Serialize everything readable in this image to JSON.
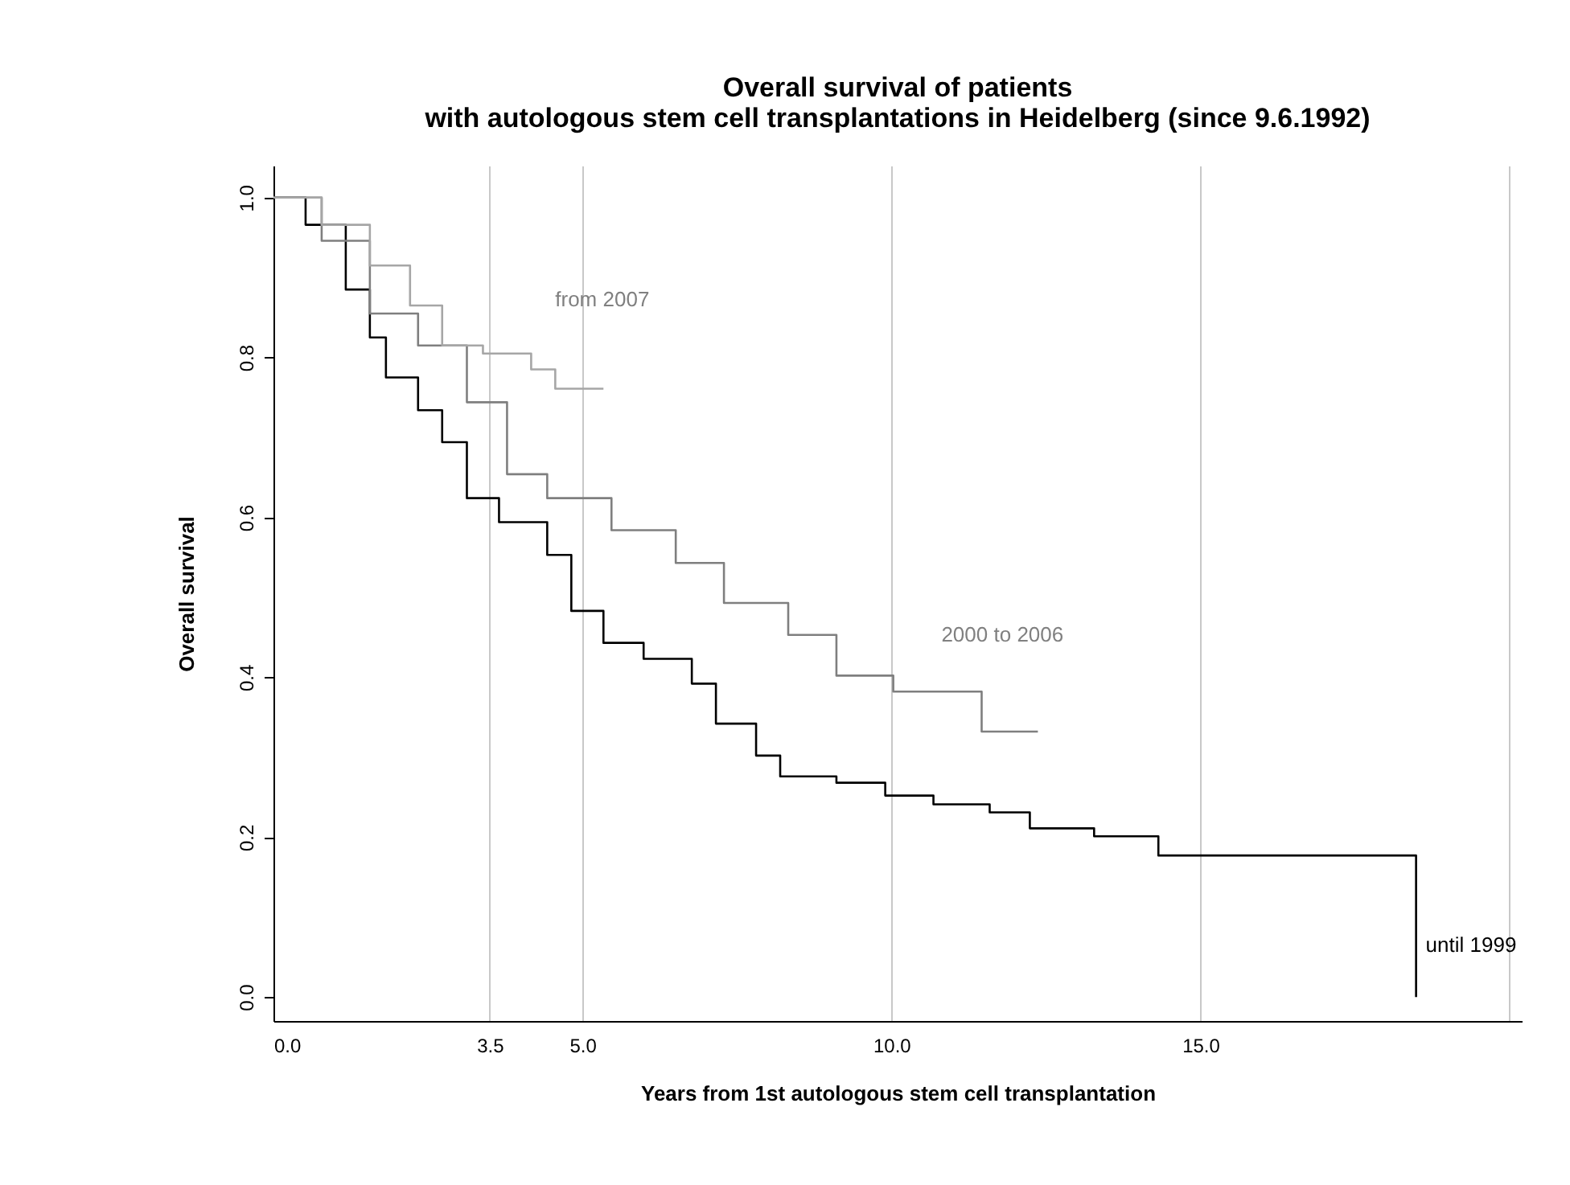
{
  "chart_data": {
    "type": "step",
    "title": "Overall survival of patients\nwith autologous stem cell transplantations in Heidelberg (since 9.6.1992)",
    "xlabel": "Years from 1st autologous stem cell transplantation",
    "ylabel": "Overall survival",
    "xlim": [
      0,
      20.2
    ],
    "xticks": [
      {
        "value": 0,
        "label": "0.0"
      },
      3.5,
      {
        "value": 5,
        "label": "5.0"
      },
      {
        "value": 10,
        "label": "10.0"
      },
      {
        "value": 15,
        "label": "15.0"
      },
      {
        "value": 20,
        "label": null
      }
    ],
    "ylim": [
      -0.03,
      1.04
    ],
    "yticks": [
      {
        "value": 0,
        "label": "0.0"
      },
      0.2,
      0.4,
      0.6,
      0.8,
      {
        "value": 1,
        "label": "1.0"
      }
    ],
    "grid": "x",
    "series": [
      {
        "name": "until 1999",
        "color": "#000000",
        "x": [
          0,
          0.52,
          1.17,
          1.56,
          1.82,
          2.34,
          2.73,
          3.13,
          3.65,
          4.43,
          4.82,
          5.34,
          5.99,
          6.77,
          7.16,
          7.81,
          8.2,
          9.11,
          9.9,
          10.68,
          11.59,
          12.24,
          13.28,
          14.32,
          18.49
        ],
        "values": [
          1,
          0.966,
          0.885,
          0.825,
          0.775,
          0.734,
          0.694,
          0.624,
          0.594,
          0.553,
          0.483,
          0.443,
          0.423,
          0.392,
          0.342,
          0.302,
          0.276,
          0.268,
          0.252,
          0.241,
          0.231,
          0.211,
          0.201,
          0.177,
          0
        ]
      },
      {
        "name": "2000 to 2006",
        "color": "#7f7f7f",
        "x": [
          0,
          0.78,
          1.56,
          2.34,
          3.13,
          3.78,
          4.43,
          5.47,
          6.51,
          7.29,
          8.33,
          9.11,
          10.03,
          11.46,
          12.37
        ],
        "values": [
          1,
          0.946,
          0.855,
          0.815,
          0.744,
          0.654,
          0.624,
          0.584,
          0.543,
          0.493,
          0.453,
          0.402,
          0.382,
          0.332,
          0.332
        ]
      },
      {
        "name": "from 2007",
        "color": "#a6a6a6",
        "x": [
          0,
          0.78,
          1.56,
          2.21,
          2.73,
          3.39,
          4.17,
          4.56,
          5.34
        ],
        "values": [
          1,
          0.966,
          0.915,
          0.865,
          0.815,
          0.805,
          0.785,
          0.761,
          0.761
        ]
      }
    ]
  }
}
